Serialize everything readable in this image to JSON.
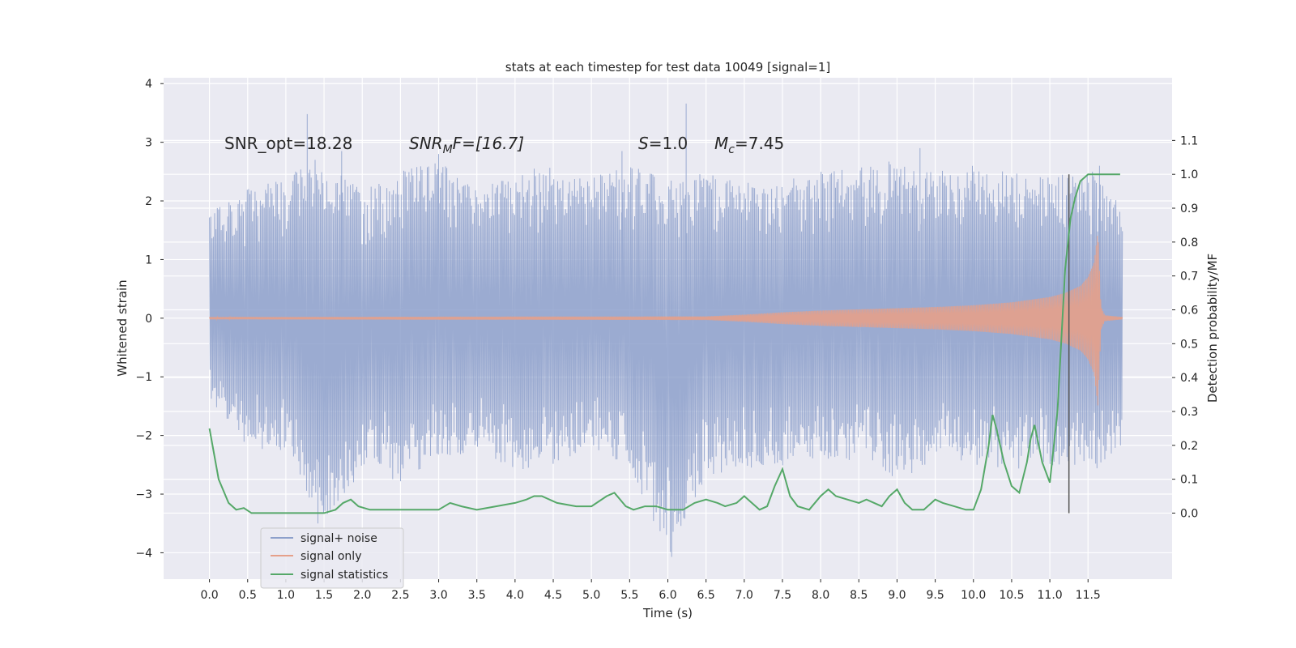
{
  "chart_data": {
    "type": "line",
    "title": "stats at each timestep for test data 10049 [signal=1]",
    "xlabel": "Time (s)",
    "ylabel": "Whitened strain",
    "y2label": "Detection probability/MF",
    "xlim": [
      -0.6,
      12.6
    ],
    "ylim": [
      -4.45,
      4.1
    ],
    "y2lim": [
      -0.195,
      1.285
    ],
    "xticks": [
      "0.0",
      "0.5",
      "1.0",
      "1.5",
      "2.0",
      "2.5",
      "3.0",
      "3.5",
      "4.0",
      "4.5",
      "5.0",
      "5.5",
      "6.0",
      "6.5",
      "7.0",
      "7.5",
      "8.0",
      "8.5",
      "9.0",
      "9.5",
      "10.0",
      "10.5",
      "11.0",
      "11.5"
    ],
    "yticks": [
      "4",
      "3",
      "2",
      "1",
      "0",
      "−1",
      "−2",
      "−3",
      "−4"
    ],
    "y2ticks": [
      "1.1",
      "1.0",
      "0.9",
      "0.8",
      "0.7",
      "0.6",
      "0.5",
      "0.4",
      "0.3",
      "0.2",
      "0.1",
      "0.0"
    ],
    "grid": true,
    "legend_position": "lower-left",
    "annotations": {
      "snr_opt": "SNR_opt=18.28",
      "snr_mf_base": "SNR",
      "snr_mf_sub": "M",
      "snr_mf_rest": "F=[16.7]",
      "s_base": "S",
      "s_rest": "=1.0",
      "mc_base": "M",
      "mc_sub": "c",
      "mc_rest": "=7.45"
    },
    "marker_time": 11.25,
    "series": [
      {
        "name": "signal+ noise",
        "color": "#8da0cb",
        "axis": "left",
        "envelope_t": [
          0.0,
          0.5,
          1.0,
          1.5,
          2.0,
          2.5,
          3.0,
          3.5,
          4.0,
          4.5,
          5.0,
          5.5,
          6.0,
          6.5,
          7.0,
          7.5,
          8.0,
          8.5,
          9.0,
          9.5,
          10.0,
          10.5,
          11.0,
          11.5,
          11.95
        ],
        "envelope_upper": [
          1.8,
          2.2,
          2.4,
          2.8,
          2.2,
          2.5,
          2.7,
          2.3,
          2.5,
          2.6,
          2.4,
          2.6,
          2.4,
          2.5,
          2.3,
          2.4,
          2.5,
          2.6,
          2.7,
          2.5,
          2.6,
          2.5,
          2.4,
          2.6,
          1.9
        ],
        "envelope_lower": [
          -1.4,
          -2.2,
          -2.4,
          -3.5,
          -2.6,
          -2.8,
          -2.4,
          -2.3,
          -2.6,
          -2.5,
          -2.3,
          -2.5,
          -4.1,
          -2.7,
          -2.6,
          -2.6,
          -2.4,
          -2.5,
          -2.8,
          -2.4,
          -2.5,
          -2.6,
          -2.5,
          -2.7,
          -2.2
        ],
        "spikes": [
          [
            1.28,
            3.48
          ],
          [
            6.24,
            3.66
          ],
          [
            6.05,
            -4.07
          ],
          [
            1.42,
            -3.5
          ],
          [
            9.3,
            2.9
          ],
          [
            5.4,
            2.85
          ],
          [
            1.73,
            2.85
          ],
          [
            3.0,
            2.8
          ],
          [
            11.65,
            2.6
          ]
        ]
      },
      {
        "name": "signal only",
        "color": "#e5a08a",
        "axis": "left",
        "t": [
          0.0,
          6.5,
          7.0,
          7.5,
          8.0,
          8.5,
          9.0,
          9.5,
          10.0,
          10.5,
          11.0,
          11.2,
          11.4,
          11.5,
          11.58,
          11.63,
          11.67,
          11.72,
          11.95
        ],
        "amplitude": [
          0.02,
          0.03,
          0.06,
          0.1,
          0.13,
          0.15,
          0.17,
          0.19,
          0.22,
          0.27,
          0.36,
          0.43,
          0.55,
          0.7,
          0.95,
          1.5,
          0.2,
          0.05,
          0.02
        ]
      },
      {
        "name": "signal statistics",
        "color": "#55a868",
        "axis": "right",
        "t": [
          0.0,
          0.12,
          0.25,
          0.35,
          0.45,
          0.55,
          0.7,
          0.9,
          1.1,
          1.3,
          1.5,
          1.65,
          1.75,
          1.85,
          1.95,
          2.1,
          2.3,
          2.5,
          2.75,
          3.0,
          3.15,
          3.3,
          3.5,
          3.75,
          4.0,
          4.15,
          4.25,
          4.35,
          4.55,
          4.8,
          5.0,
          5.2,
          5.3,
          5.45,
          5.55,
          5.7,
          5.85,
          6.0,
          6.2,
          6.35,
          6.5,
          6.65,
          6.75,
          6.9,
          7.0,
          7.1,
          7.2,
          7.3,
          7.4,
          7.5,
          7.6,
          7.7,
          7.85,
          8.0,
          8.1,
          8.2,
          8.35,
          8.5,
          8.6,
          8.7,
          8.8,
          8.9,
          9.0,
          9.1,
          9.2,
          9.35,
          9.5,
          9.6,
          9.75,
          9.9,
          10.0,
          10.1,
          10.2,
          10.25,
          10.3,
          10.4,
          10.5,
          10.6,
          10.7,
          10.75,
          10.8,
          10.9,
          11.0,
          11.1,
          11.2,
          11.27,
          11.33,
          11.4,
          11.5,
          11.6,
          11.75,
          11.92
        ],
        "values": [
          0.25,
          0.1,
          0.03,
          0.01,
          0.015,
          0.0,
          0.0,
          0.0,
          0.0,
          0.0,
          0.0,
          0.01,
          0.03,
          0.04,
          0.02,
          0.01,
          0.01,
          0.01,
          0.01,
          0.01,
          0.03,
          0.02,
          0.01,
          0.02,
          0.03,
          0.04,
          0.05,
          0.05,
          0.03,
          0.02,
          0.02,
          0.05,
          0.06,
          0.02,
          0.01,
          0.02,
          0.02,
          0.01,
          0.01,
          0.03,
          0.04,
          0.03,
          0.02,
          0.03,
          0.05,
          0.03,
          0.01,
          0.02,
          0.08,
          0.13,
          0.05,
          0.02,
          0.01,
          0.05,
          0.07,
          0.05,
          0.04,
          0.03,
          0.04,
          0.03,
          0.02,
          0.05,
          0.07,
          0.03,
          0.01,
          0.01,
          0.04,
          0.03,
          0.02,
          0.01,
          0.01,
          0.07,
          0.2,
          0.29,
          0.25,
          0.15,
          0.08,
          0.06,
          0.15,
          0.22,
          0.26,
          0.15,
          0.09,
          0.3,
          0.72,
          0.87,
          0.93,
          0.98,
          1.0,
          1.0,
          1.0,
          1.0
        ]
      }
    ]
  }
}
